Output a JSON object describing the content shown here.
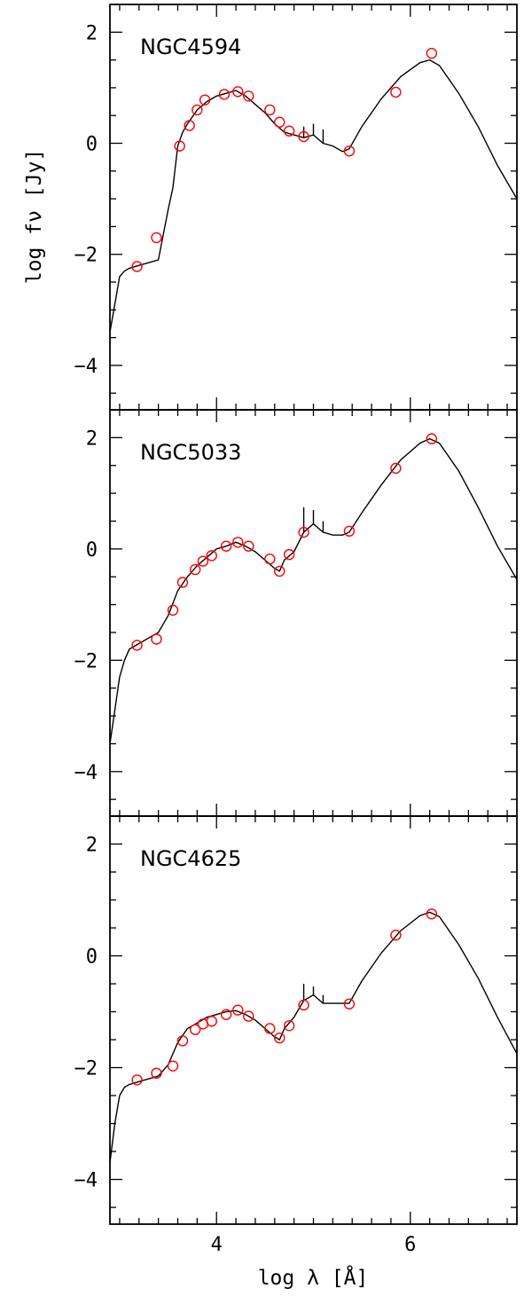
{
  "chart_data": {
    "type": "line",
    "layout": "3 vertically stacked panels sharing the x axis",
    "xlabel": "log λ [Å]",
    "ylabel": "log fν [Jy]",
    "xlim": [
      2.9,
      7.1
    ],
    "ylim": [
      -4.8,
      2.5
    ],
    "xticks_major": [
      4,
      6
    ],
    "xtick_labels": [
      "4",
      "6"
    ],
    "yticks_major": [
      -4,
      -2,
      0,
      2
    ],
    "ytick_labels": [
      "−4",
      "−2",
      "0",
      "2"
    ],
    "grid": false,
    "series_styles": {
      "model": {
        "kind": "line",
        "color": "#000000"
      },
      "observed": {
        "kind": "open-circle",
        "color": "#ff0000"
      }
    },
    "panels": [
      {
        "label": "NGC4594",
        "model": {
          "x": [
            2.9,
            2.95,
            3.0,
            3.05,
            3.1,
            3.2,
            3.3,
            3.4,
            3.5,
            3.55,
            3.6,
            3.65,
            3.7,
            3.8,
            3.9,
            4.0,
            4.1,
            4.2,
            4.3,
            4.4,
            4.5,
            4.6,
            4.7,
            4.8,
            4.9,
            5.0,
            5.1,
            5.2,
            5.3,
            5.37,
            5.5,
            5.7,
            5.9,
            6.1,
            6.2,
            6.3,
            6.5,
            6.7,
            6.9,
            7.1
          ],
          "y": [
            -3.4,
            -2.9,
            -2.4,
            -2.3,
            -2.25,
            -2.2,
            -2.15,
            -2.1,
            -1.2,
            -0.8,
            -0.05,
            0.2,
            0.35,
            0.6,
            0.75,
            0.85,
            0.9,
            0.95,
            0.85,
            0.7,
            0.55,
            0.35,
            0.2,
            0.15,
            0.1,
            0.15,
            0.0,
            -0.05,
            -0.15,
            -0.1,
            0.3,
            0.8,
            1.2,
            1.45,
            1.5,
            1.4,
            0.9,
            0.3,
            -0.4,
            -1.0
          ]
        },
        "emission_spikes": [
          [
            4.9,
            0.3
          ],
          [
            5.0,
            0.35
          ],
          [
            5.1,
            0.25
          ]
        ],
        "observed": {
          "x": [
            3.18,
            3.38,
            3.62,
            3.72,
            3.8,
            3.88,
            4.08,
            4.22,
            4.33,
            4.55,
            4.65,
            4.75,
            4.9,
            5.37,
            5.85,
            6.22
          ],
          "y": [
            -2.22,
            -1.7,
            -0.05,
            0.32,
            0.6,
            0.78,
            0.88,
            0.93,
            0.85,
            0.6,
            0.38,
            0.22,
            0.12,
            -0.14,
            0.92,
            1.62
          ]
        }
      },
      {
        "label": "NGC5033",
        "model": {
          "x": [
            2.9,
            2.95,
            3.0,
            3.05,
            3.1,
            3.2,
            3.3,
            3.4,
            3.5,
            3.6,
            3.7,
            3.8,
            3.9,
            4.0,
            4.1,
            4.2,
            4.3,
            4.4,
            4.5,
            4.6,
            4.65,
            4.7,
            4.8,
            4.9,
            5.0,
            5.1,
            5.2,
            5.3,
            5.37,
            5.5,
            5.7,
            5.9,
            6.1,
            6.2,
            6.3,
            6.5,
            6.7,
            6.9,
            7.1
          ],
          "y": [
            -3.5,
            -2.9,
            -2.3,
            -2.0,
            -1.8,
            -1.7,
            -1.6,
            -1.5,
            -1.2,
            -0.75,
            -0.5,
            -0.3,
            -0.15,
            0.0,
            0.05,
            0.12,
            0.05,
            -0.05,
            -0.2,
            -0.35,
            -0.4,
            -0.2,
            -0.05,
            0.3,
            0.45,
            0.3,
            0.25,
            0.25,
            0.3,
            0.65,
            1.15,
            1.6,
            1.9,
            1.98,
            1.9,
            1.4,
            0.75,
            0.05,
            -0.55
          ]
        },
        "emission_spikes": [
          [
            4.9,
            0.75
          ],
          [
            5.0,
            0.7
          ],
          [
            5.1,
            0.5
          ]
        ],
        "observed": {
          "x": [
            3.18,
            3.38,
            3.55,
            3.65,
            3.78,
            3.86,
            3.95,
            4.1,
            4.22,
            4.33,
            4.55,
            4.65,
            4.75,
            4.9,
            5.37,
            5.85,
            6.22
          ],
          "y": [
            -1.73,
            -1.62,
            -1.1,
            -0.6,
            -0.37,
            -0.22,
            -0.12,
            0.05,
            0.12,
            0.05,
            -0.18,
            -0.4,
            -0.1,
            0.3,
            0.32,
            1.45,
            1.98
          ]
        }
      },
      {
        "label": "NGC4625",
        "model": {
          "x": [
            2.9,
            2.95,
            3.0,
            3.05,
            3.1,
            3.2,
            3.3,
            3.4,
            3.5,
            3.6,
            3.7,
            3.8,
            3.9,
            4.0,
            4.1,
            4.2,
            4.3,
            4.4,
            4.5,
            4.6,
            4.65,
            4.7,
            4.8,
            4.9,
            5.0,
            5.1,
            5.2,
            5.3,
            5.37,
            5.5,
            5.7,
            5.9,
            6.1,
            6.2,
            6.3,
            6.5,
            6.7,
            6.9,
            7.1
          ],
          "y": [
            -3.7,
            -3.0,
            -2.5,
            -2.35,
            -2.3,
            -2.25,
            -2.2,
            -2.15,
            -1.95,
            -1.55,
            -1.3,
            -1.2,
            -1.1,
            -1.05,
            -1.0,
            -0.98,
            -1.05,
            -1.15,
            -1.3,
            -1.45,
            -1.5,
            -1.3,
            -1.1,
            -0.8,
            -0.7,
            -0.85,
            -0.85,
            -0.85,
            -0.85,
            -0.45,
            0.05,
            0.45,
            0.72,
            0.78,
            0.7,
            0.2,
            -0.4,
            -1.1,
            -1.75
          ]
        },
        "emission_spikes": [
          [
            4.9,
            -0.5
          ],
          [
            5.0,
            -0.55
          ],
          [
            5.1,
            -0.7
          ]
        ],
        "observed": {
          "x": [
            3.18,
            3.38,
            3.55,
            3.65,
            3.78,
            3.86,
            3.95,
            4.1,
            4.22,
            4.33,
            4.55,
            4.65,
            4.75,
            4.9,
            5.37,
            5.85,
            6.22
          ],
          "y": [
            -2.22,
            -2.1,
            -1.97,
            -1.52,
            -1.32,
            -1.22,
            -1.17,
            -1.05,
            -0.97,
            -1.08,
            -1.3,
            -1.47,
            -1.25,
            -0.88,
            -0.86,
            0.37,
            0.75
          ]
        }
      }
    ]
  }
}
